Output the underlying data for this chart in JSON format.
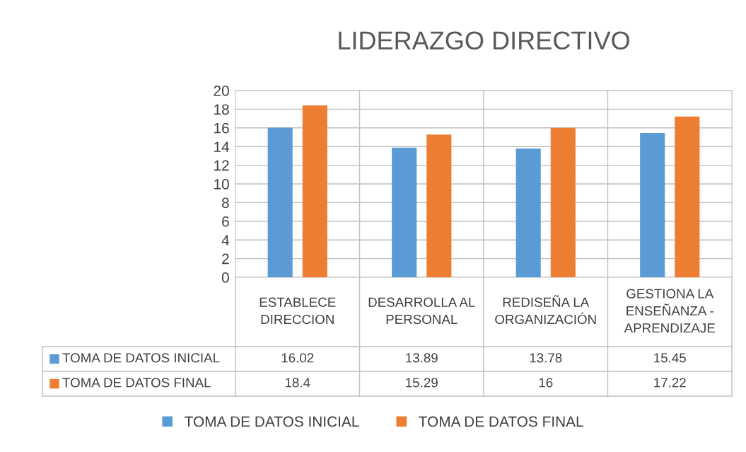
{
  "chart_data": {
    "type": "bar",
    "title": "LIDERAZGO DIRECTIVO",
    "categories": [
      "ESTABLECE DIRECCION",
      "DESARROLLA AL PERSONAL",
      "REDISEÑA LA ORGANIZACIÓN",
      "GESTIONA LA ENSEÑANZA - APRENDIZAJE"
    ],
    "series": [
      {
        "name": "TOMA DE DATOS INICIAL",
        "color": "#5b9bd5",
        "values": [
          16.02,
          13.89,
          13.78,
          15.45
        ]
      },
      {
        "name": "TOMA DE DATOS FINAL",
        "color": "#ed7d31",
        "values": [
          18.4,
          15.29,
          16,
          17.22
        ]
      }
    ],
    "ylim": [
      0,
      20
    ],
    "yticks": [
      0,
      2,
      4,
      6,
      8,
      10,
      12,
      14,
      16,
      18,
      20
    ],
    "grid": "y",
    "legend": "bottom",
    "data_labels": true
  }
}
